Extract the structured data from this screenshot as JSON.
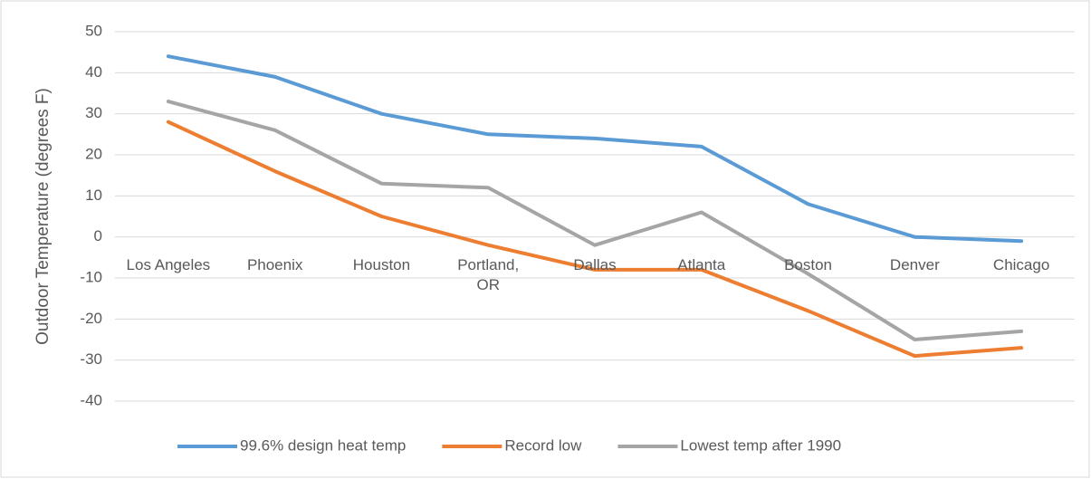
{
  "chart_data": {
    "type": "line",
    "y_label": "Outdoor Temperature (degrees F)",
    "categories": [
      "Los Angeles",
      "Phoenix",
      "Houston",
      "Portland, OR",
      "Dallas",
      "Atlanta",
      "Boston",
      "Denver",
      "Chicago"
    ],
    "series": [
      {
        "name": "99.6% design heat temp",
        "color": "#5b9bd5",
        "values": [
          44,
          39,
          30,
          25,
          24,
          22,
          8,
          0,
          -1
        ]
      },
      {
        "name": "Record low",
        "color": "#ed7d31",
        "values": [
          28,
          16,
          5,
          -2,
          -8,
          -8,
          -18,
          -29,
          -27
        ]
      },
      {
        "name": "Lowest temp after 1990",
        "color": "#a5a5a5",
        "values": [
          33,
          26,
          13,
          12,
          -2,
          6,
          -9,
          -25,
          -23
        ]
      }
    ],
    "ylim": [
      -40,
      50
    ],
    "yticks": [
      -40,
      -30,
      -20,
      -10,
      0,
      10,
      20,
      30,
      40,
      50
    ],
    "grid": true,
    "legend": "bottom"
  }
}
